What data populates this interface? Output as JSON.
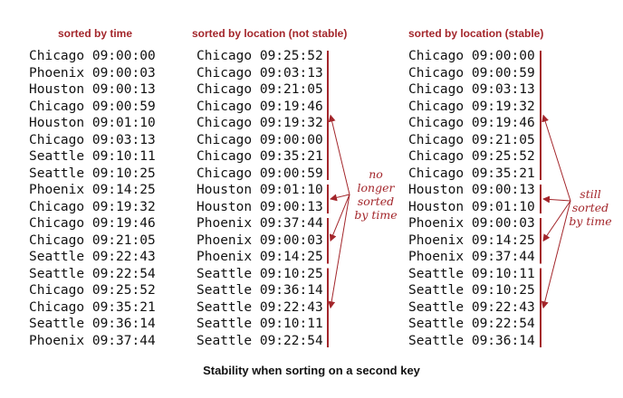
{
  "headers": {
    "by_time": "sorted by time",
    "not_stable": "sorted by location (not stable)",
    "stable": "sorted by location (stable)"
  },
  "columns": {
    "by_time": [
      {
        "city": "Chicago",
        "time": "09:00:00"
      },
      {
        "city": "Phoenix",
        "time": "09:00:03"
      },
      {
        "city": "Houston",
        "time": "09:00:13"
      },
      {
        "city": "Chicago",
        "time": "09:00:59"
      },
      {
        "city": "Houston",
        "time": "09:01:10"
      },
      {
        "city": "Chicago",
        "time": "09:03:13"
      },
      {
        "city": "Seattle",
        "time": "09:10:11"
      },
      {
        "city": "Seattle",
        "time": "09:10:25"
      },
      {
        "city": "Phoenix",
        "time": "09:14:25"
      },
      {
        "city": "Chicago",
        "time": "09:19:32"
      },
      {
        "city": "Chicago",
        "time": "09:19:46"
      },
      {
        "city": "Chicago",
        "time": "09:21:05"
      },
      {
        "city": "Seattle",
        "time": "09:22:43"
      },
      {
        "city": "Seattle",
        "time": "09:22:54"
      },
      {
        "city": "Chicago",
        "time": "09:25:52"
      },
      {
        "city": "Chicago",
        "time": "09:35:21"
      },
      {
        "city": "Seattle",
        "time": "09:36:14"
      },
      {
        "city": "Phoenix",
        "time": "09:37:44"
      }
    ],
    "not_stable": [
      {
        "city": "Chicago",
        "time": "09:25:52"
      },
      {
        "city": "Chicago",
        "time": "09:03:13"
      },
      {
        "city": "Chicago",
        "time": "09:21:05"
      },
      {
        "city": "Chicago",
        "time": "09:19:46"
      },
      {
        "city": "Chicago",
        "time": "09:19:32"
      },
      {
        "city": "Chicago",
        "time": "09:00:00"
      },
      {
        "city": "Chicago",
        "time": "09:35:21"
      },
      {
        "city": "Chicago",
        "time": "09:00:59"
      },
      {
        "city": "Houston",
        "time": "09:01:10"
      },
      {
        "city": "Houston",
        "time": "09:00:13"
      },
      {
        "city": "Phoenix",
        "time": "09:37:44"
      },
      {
        "city": "Phoenix",
        "time": "09:00:03"
      },
      {
        "city": "Phoenix",
        "time": "09:14:25"
      },
      {
        "city": "Seattle",
        "time": "09:10:25"
      },
      {
        "city": "Seattle",
        "time": "09:36:14"
      },
      {
        "city": "Seattle",
        "time": "09:22:43"
      },
      {
        "city": "Seattle",
        "time": "09:10:11"
      },
      {
        "city": "Seattle",
        "time": "09:22:54"
      }
    ],
    "stable": [
      {
        "city": "Chicago",
        "time": "09:00:00"
      },
      {
        "city": "Chicago",
        "time": "09:00:59"
      },
      {
        "city": "Chicago",
        "time": "09:03:13"
      },
      {
        "city": "Chicago",
        "time": "09:19:32"
      },
      {
        "city": "Chicago",
        "time": "09:19:46"
      },
      {
        "city": "Chicago",
        "time": "09:21:05"
      },
      {
        "city": "Chicago",
        "time": "09:25:52"
      },
      {
        "city": "Chicago",
        "time": "09:35:21"
      },
      {
        "city": "Houston",
        "time": "09:00:13"
      },
      {
        "city": "Houston",
        "time": "09:01:10"
      },
      {
        "city": "Phoenix",
        "time": "09:00:03"
      },
      {
        "city": "Phoenix",
        "time": "09:14:25"
      },
      {
        "city": "Phoenix",
        "time": "09:37:44"
      },
      {
        "city": "Seattle",
        "time": "09:10:11"
      },
      {
        "city": "Seattle",
        "time": "09:10:25"
      },
      {
        "city": "Seattle",
        "time": "09:22:43"
      },
      {
        "city": "Seattle",
        "time": "09:22:54"
      },
      {
        "city": "Seattle",
        "time": "09:36:14"
      }
    ]
  },
  "groups": [
    {
      "city": "Chicago",
      "start": 0,
      "end": 7
    },
    {
      "city": "Houston",
      "start": 8,
      "end": 9
    },
    {
      "city": "Phoenix",
      "start": 10,
      "end": 12
    },
    {
      "city": "Seattle",
      "start": 13,
      "end": 17
    }
  ],
  "notes": {
    "not_stable": [
      "no",
      "longer",
      "sorted",
      "by time"
    ],
    "stable": [
      "still",
      "sorted",
      "by time"
    ]
  },
  "caption": "Stability when sorting on a second key",
  "colors": {
    "accent": "#a3262b",
    "text": "#111111"
  }
}
